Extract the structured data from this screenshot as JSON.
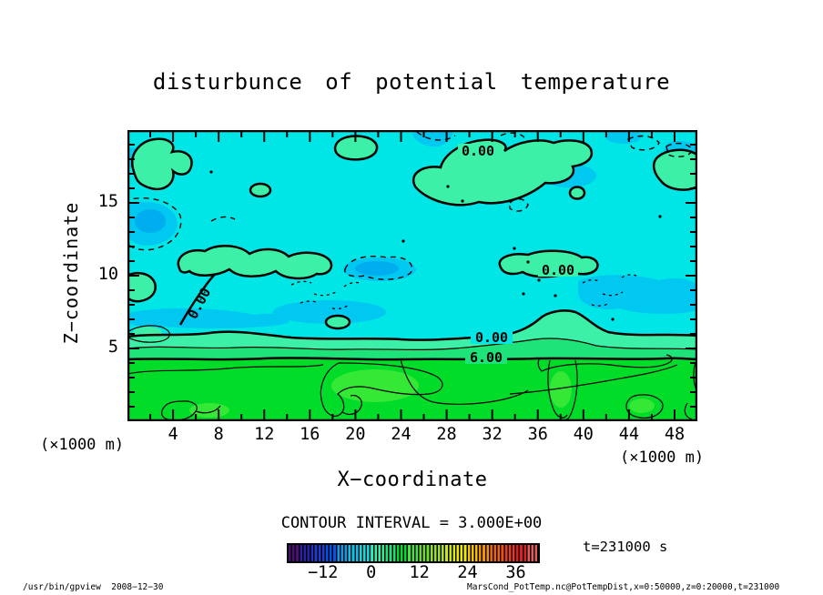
{
  "title": "disturbunce of potential temperature",
  "axes": {
    "x": {
      "label": "X−coordinate",
      "unit": "(×1000 m)"
    },
    "y": {
      "label": "Z−coordinate",
      "unit": "(×1000 m)"
    }
  },
  "contour": {
    "interval_text": "CONTOUR INTERVAL = 3.000E+00",
    "zero_label": "0.00",
    "six_label": "6.00"
  },
  "time_label": "t=231000 s",
  "footer": {
    "left": "/usr/bin/gpview  2008−12−30",
    "right": "MarsCond_PotTemp.nc@PotTempDist,x=0:50000,z=0:20000,t=231000"
  },
  "chart_data": {
    "type": "contour",
    "title": "disturbunce of potential temperature",
    "xlabel": "X−coordinate",
    "ylabel": "Z−coordinate",
    "x_unit_multiplier": "(×1000 m)",
    "y_unit_multiplier": "(×1000 m)",
    "xlim": [
      0,
      50
    ],
    "ylim": [
      0,
      20
    ],
    "x_ticks": [
      4,
      8,
      12,
      16,
      20,
      24,
      28,
      32,
      36,
      40,
      44,
      48
    ],
    "y_ticks": [
      5,
      10,
      15
    ],
    "x_minor_step": 2,
    "y_minor_step": 1,
    "contour_interval": 3.0,
    "contour_labels_shown": [
      "0.00",
      "6.00"
    ],
    "line_styles": {
      "zero_and_positive": "solid (0.00 thick)",
      "negative": "dashed"
    },
    "colorbar": {
      "vmin": -21,
      "vmax": 42,
      "tick_values": [
        -12,
        0,
        12,
        24,
        36
      ],
      "tick_labels": [
        "−12",
        "0",
        "12",
        "24",
        "36"
      ],
      "band_colors": [
        "#4A0E78",
        "#2A22AA",
        "#1D3ED6",
        "#0055EE",
        "#00A0F0",
        "#00C8F0",
        "#00E6E6",
        "#3CF0A8",
        "#1EE378",
        "#00DC28",
        "#3CE83C",
        "#66E020",
        "#9AE41E",
        "#CCE818",
        "#F0E800",
        "#F5C000",
        "#F59000",
        "#F56000",
        "#F03820",
        "#E02020",
        "#E85858"
      ]
    },
    "field_colors": {
      "cyan_near_zero": "#00E6E6",
      "blue_negative": "#00C8F0",
      "deep_blue_negative": "#00AEF0",
      "greencyan_0_to_3": "#3CF0A8",
      "green_3_to_6": "#1EE378",
      "green_above_6": "#00DC28",
      "light_green_9_to_12": "#35E835"
    },
    "field_summary": {
      "upper_region": "z ≈ 5.5–20 (×1000 m): disturbance near 0 (−6 to +3); cyan field with blue negative patches ringed by dashed contours and green-cyan positive patches ringed by thick 0.00 contours",
      "transition": "thick 0.00 contour near z≈5.8, thin 3.00 contour, thick 6.00 contour near z≈4.5 running quasi-horizontally across full width",
      "lower_region": "z ≈ 0–4.5 (×1000 m): values 6–12; bright green with thin 9.00 contour loops enclosing lighter green"
    },
    "approx_grid": {
      "x": [
        2,
        6,
        10,
        14,
        18,
        22,
        26,
        30,
        34,
        38,
        42,
        46,
        50
      ],
      "z": [
        18,
        14,
        10,
        6,
        2
      ],
      "values": [
        [
          1,
          0,
          1,
          -1,
          0,
          2,
          -2,
          0,
          1,
          -1,
          0,
          -2,
          0
        ],
        [
          -4,
          -1,
          0,
          -4,
          0,
          0,
          1,
          0,
          -1,
          0,
          -1,
          0,
          -1
        ],
        [
          2,
          1,
          -1,
          0,
          -2,
          0,
          0,
          -1,
          0,
          -3,
          1,
          0,
          0
        ],
        [
          1,
          2,
          0,
          1,
          0,
          0,
          0,
          1,
          0,
          0,
          1,
          1,
          0
        ],
        [
          8,
          8,
          9,
          10,
          9,
          8,
          9,
          9,
          10,
          9,
          8,
          8,
          8
        ]
      ]
    }
  }
}
